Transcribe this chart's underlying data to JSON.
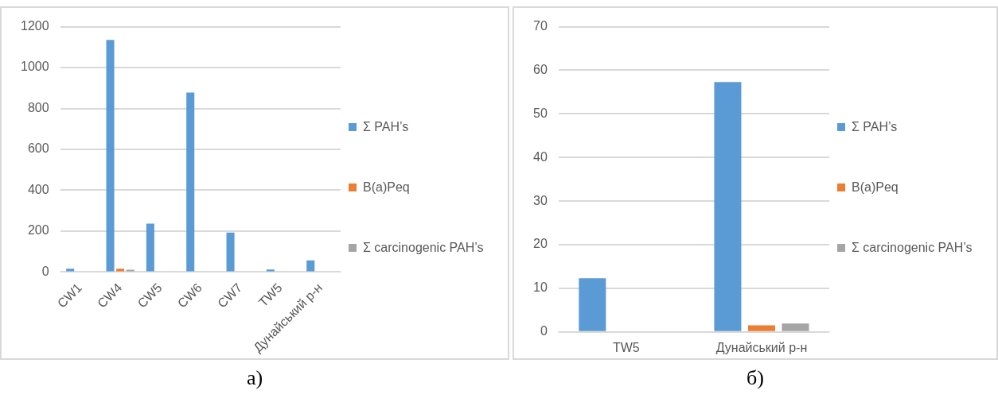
{
  "chart_data": [
    {
      "type": "bar",
      "categories": [
        "CW1",
        "CW4",
        "CW5",
        "CW6",
        "CW7",
        "TW5",
        "Дунайський р-н"
      ],
      "series": [
        {
          "name": "Σ PAH’s",
          "color": "#5b9bd5",
          "values": [
            16,
            1135,
            237,
            878,
            193,
            12,
            57
          ]
        },
        {
          "name": "B(a)Peq",
          "color": "#ed7d31",
          "values": [
            0,
            16,
            0,
            0,
            0,
            0,
            null
          ]
        },
        {
          "name": "Σ carcinogenic PAH’s",
          "color": "#a5a5a5",
          "values": [
            0,
            11,
            0,
            0,
            0,
            0,
            null
          ]
        }
      ],
      "ylim": [
        0,
        1200
      ],
      "yticks": [
        0,
        200,
        400,
        600,
        800,
        1000,
        1200
      ],
      "grid": "y",
      "legend": "right",
      "annotations": [
        "а)"
      ]
    },
    {
      "type": "bar",
      "categories": [
        "TW5",
        "Дунайський р-н"
      ],
      "series": [
        {
          "name": "Σ PAH’s",
          "color": "#5b9bd5",
          "values": [
            12.3,
            57.3
          ]
        },
        {
          "name": "B(a)Peq",
          "color": "#ed7d31",
          "values": [
            0,
            1.5
          ]
        },
        {
          "name": "Σ carcinogenic PAH’s",
          "color": "#a5a5a5",
          "values": [
            0,
            1.9
          ]
        }
      ],
      "ylim": [
        0,
        70
      ],
      "yticks": [
        0,
        10,
        20,
        30,
        40,
        50,
        60,
        70
      ],
      "grid": "y",
      "legend": "right",
      "annotations": [
        "б)"
      ]
    }
  ]
}
